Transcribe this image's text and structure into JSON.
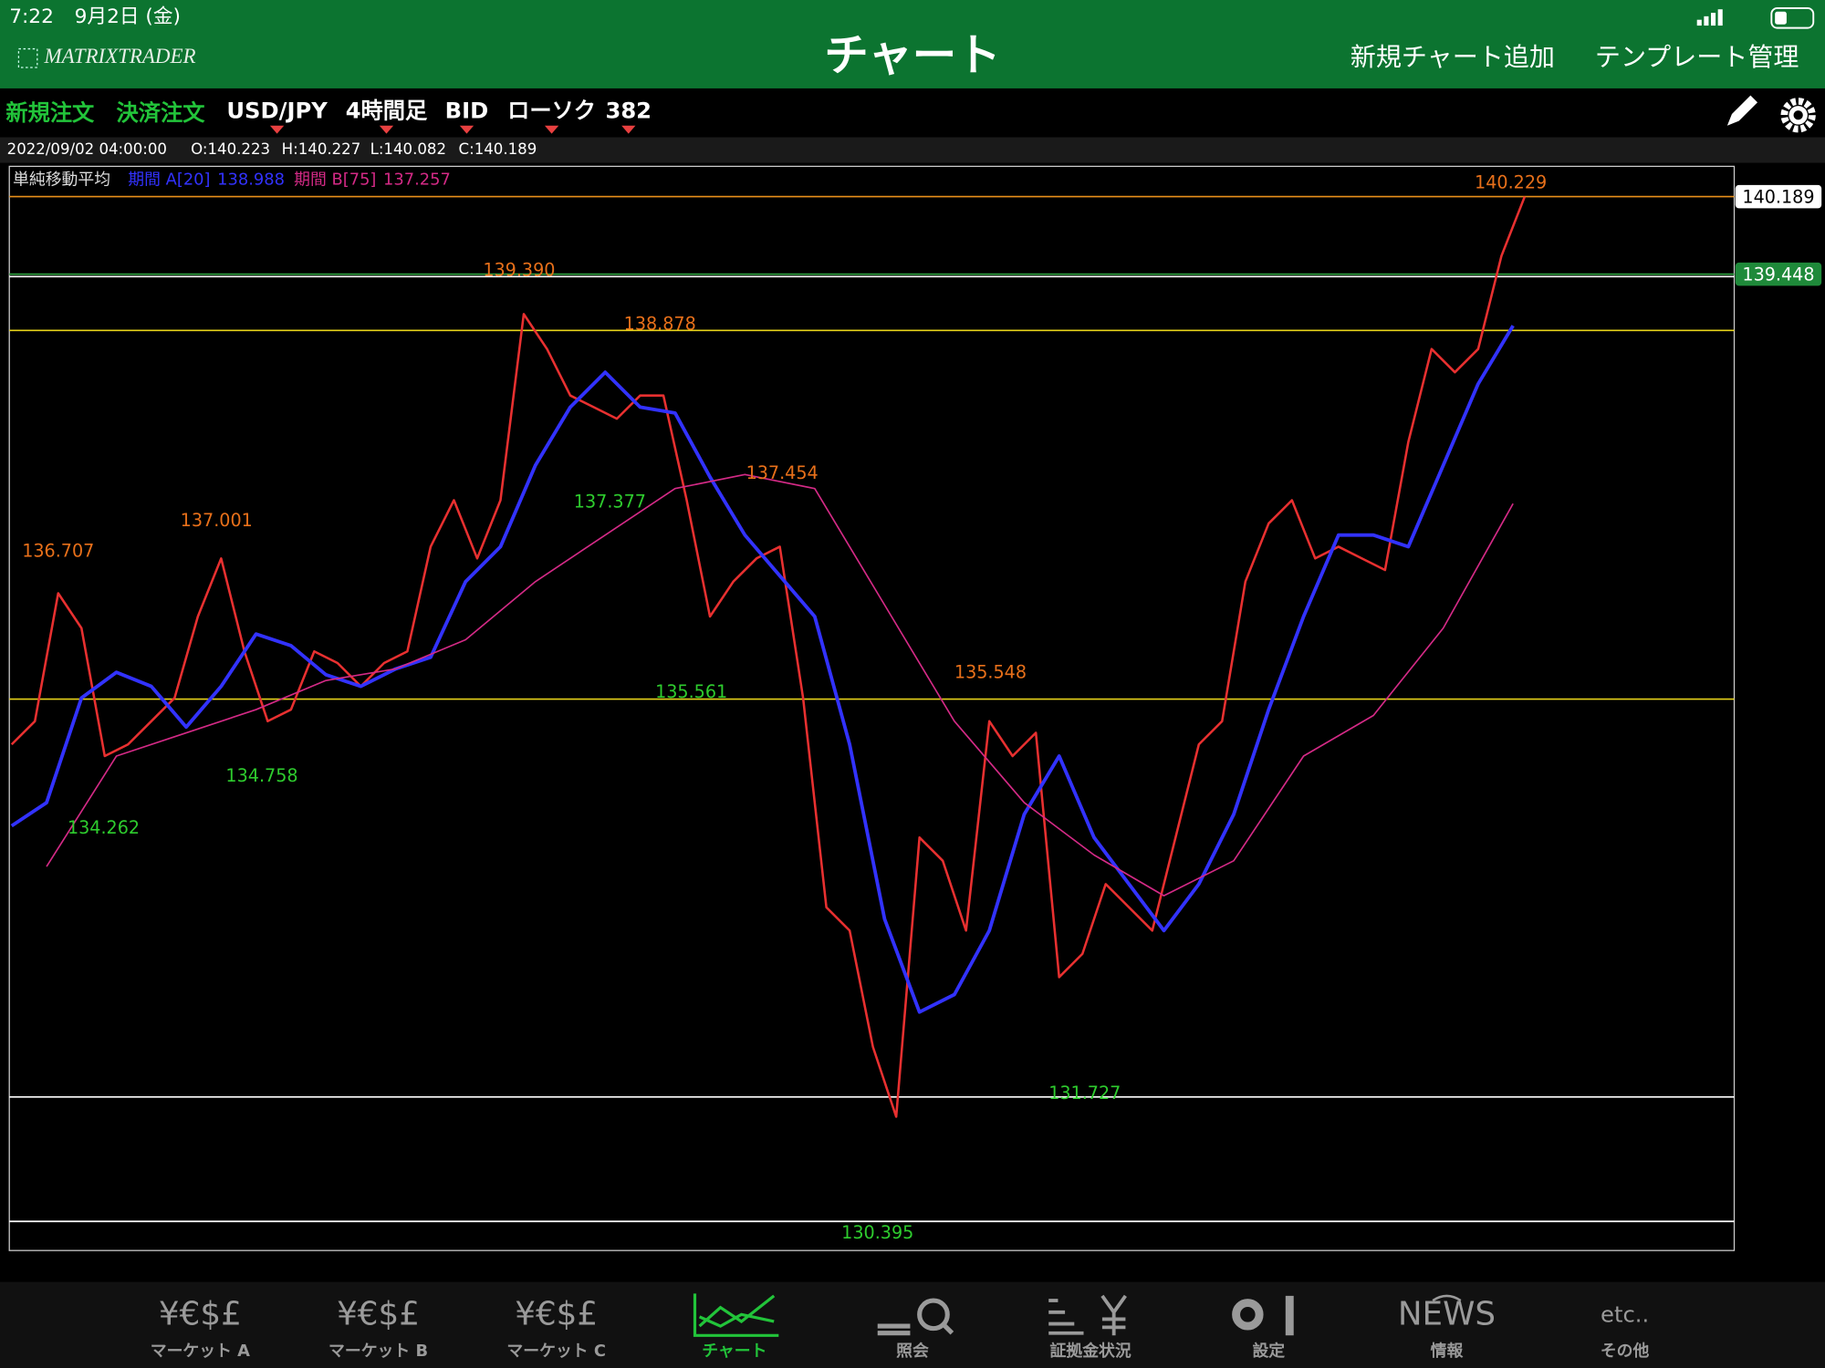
{
  "status_bar": {
    "time": "7:22",
    "date": "9月2日 (金)"
  },
  "header": {
    "logo": "MATRIXTRADER",
    "title": "チャート",
    "actions": [
      "新規チャート追加",
      "テンプレート管理"
    ]
  },
  "toolbar": {
    "orders": [
      "新規注文",
      "決済注文"
    ],
    "symbol": "USD/JPY",
    "timeframe": "4時間足",
    "side": "BID",
    "chart_style": "ローソク",
    "bar_count": "382"
  },
  "ohlc": {
    "datetime": "2022/09/02 04:00:00",
    "open": "O:140.223",
    "high": "H:140.227",
    "low": "L:140.082",
    "close": "C:140.189"
  },
  "chart_data": {
    "type": "line",
    "indicator": "単純移動平均",
    "ylim": [
      130.122,
      140.478
    ],
    "price_color": "#e83030",
    "price_values": [
      134.956,
      135.178,
      136.4,
      136.067,
      134.845,
      134.956,
      135.178,
      135.4,
      136.178,
      136.733,
      135.845,
      135.178,
      135.289,
      135.845,
      135.734,
      135.511,
      135.734,
      135.845,
      136.845,
      137.289,
      136.733,
      137.289,
      139.067,
      138.733,
      138.289,
      138.178,
      138.067,
      138.289,
      138.289,
      137.289,
      136.178,
      136.511,
      136.733,
      136.845,
      135.4,
      133.4,
      133.178,
      132.067,
      131.4,
      134.067,
      133.845,
      133.178,
      135.178,
      134.845,
      135.067,
      132.733,
      132.956,
      133.622,
      133.4,
      133.178,
      134.067,
      134.956,
      135.178,
      136.511,
      137.067,
      137.289,
      136.733,
      136.845,
      136.733,
      136.622,
      137.845,
      138.733,
      138.511,
      138.733,
      139.622,
      140.189
    ],
    "series": [
      {
        "name": "期間 A[20]",
        "color": "#3232ff",
        "legend_value": 138.988,
        "values": [
          134.178,
          134.4,
          135.4,
          135.645,
          135.511,
          135.122,
          135.511,
          136.011,
          135.9,
          135.622,
          135.511,
          135.678,
          135.789,
          136.511,
          136.845,
          137.622,
          138.178,
          138.511,
          138.178,
          138.122,
          137.511,
          136.956,
          136.567,
          136.178,
          134.956,
          133.289,
          132.4,
          132.567,
          133.178,
          134.289,
          134.845,
          134.067,
          133.622,
          133.178,
          133.622,
          134.289,
          135.289,
          136.178,
          136.956,
          136.956,
          136.845,
          137.622,
          138.4,
          138.956
        ]
      },
      {
        "name": "期間 B[75]",
        "color": "#d42a86",
        "legend_value": 137.257,
        "values": [
          133.789,
          134.845,
          135.067,
          135.289,
          135.567,
          135.678,
          135.956,
          136.511,
          136.956,
          137.4,
          137.534,
          137.4,
          136.289,
          135.178,
          134.4,
          133.9,
          133.511,
          133.845,
          134.845,
          135.233,
          136.067,
          137.256
        ]
      }
    ],
    "highs_color": "#e8701a",
    "lows_color": "#2ecc2e",
    "highs": [
      136.707,
      137.001,
      {
        "value": 139.39,
        "label": "139.390"
      },
      138.878,
      137.454,
      135.548,
      140.229
    ],
    "lows": [
      134.262,
      134.758,
      137.377,
      135.561,
      130.395,
      131.727
    ],
    "hlines": [
      {
        "value": 140.189,
        "color": "#e8901a"
      },
      {
        "value": 139.448,
        "color": "#2e9e3e"
      },
      {
        "value": 139.425,
        "color": "#ffffff"
      },
      {
        "value": 138.911,
        "color": "#e6d21a"
      },
      {
        "value": 135.389,
        "color": "#e6d21a"
      },
      {
        "value": 131.589,
        "color": "#ffffff"
      },
      {
        "value": 130.4,
        "color": "#ffffff"
      }
    ],
    "price_tags": [
      {
        "value": 140.189,
        "color": "#ffffff",
        "text_color": "#000000"
      },
      {
        "value": 139.448,
        "color": "#1f8a3a",
        "text_color": "#ffffff"
      }
    ]
  },
  "tab_bar": {
    "active": 3,
    "tabs": [
      {
        "icon": "¥€$£",
        "label": "マーケット A"
      },
      {
        "icon": "¥€$£",
        "label": "マーケット B"
      },
      {
        "icon": "¥€$£",
        "label": "マーケット C"
      },
      {
        "label": "チャート"
      },
      {
        "label": "照会"
      },
      {
        "label": "証拠金状況"
      },
      {
        "label": "設定"
      },
      {
        "icon": "NEWS",
        "label": "情報"
      },
      {
        "icon": "etc..",
        "label": "その他"
      }
    ]
  }
}
